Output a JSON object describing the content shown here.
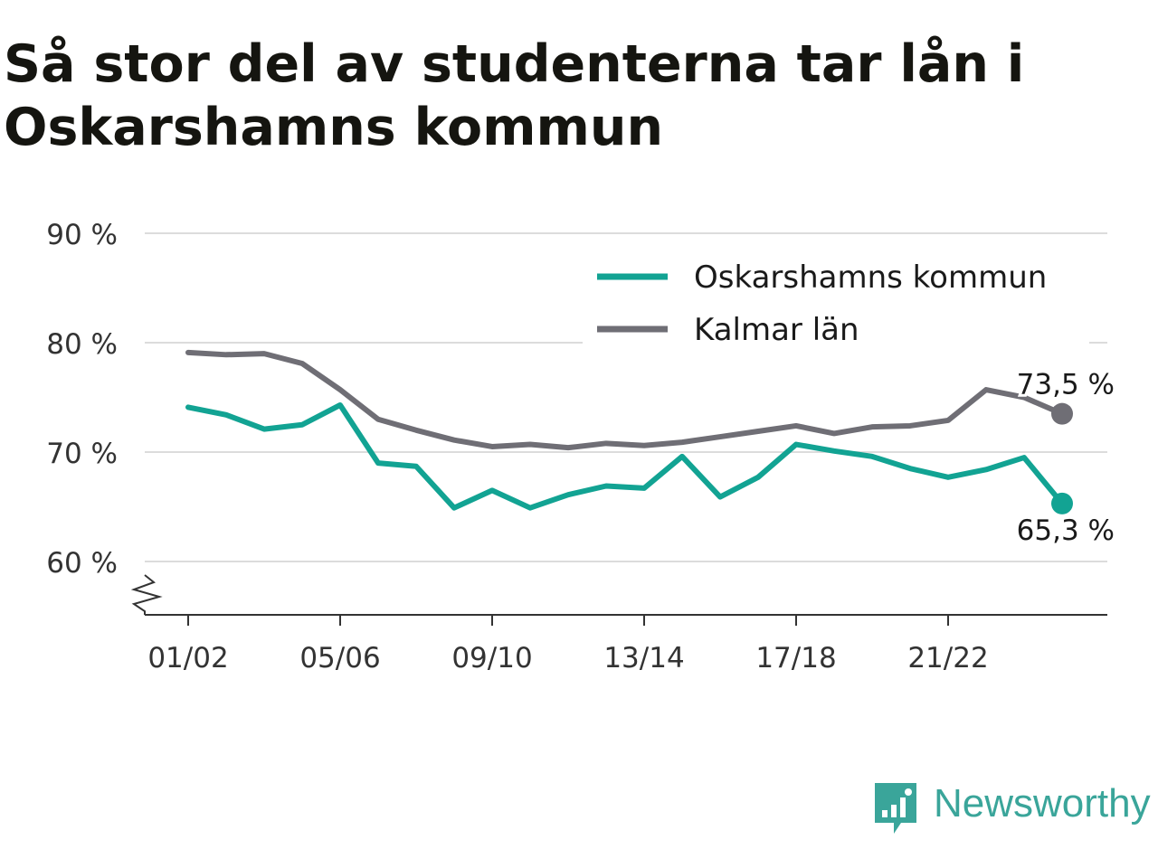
{
  "title": "Så stor del av studenterna tar lån i Oskarshamns kommun",
  "brand": {
    "name": "Newsworthy",
    "color": "#3aa59a",
    "icon": "newsworthy-chart-bubble-icon"
  },
  "chart_data": {
    "type": "line",
    "title": "Så stor del av studenterna tar lån i Oskarshamns kommun",
    "xlabel": "",
    "ylabel": "",
    "categories": [
      "01/02",
      "02/03",
      "03/04",
      "04/05",
      "05/06",
      "06/07",
      "07/08",
      "08/09",
      "09/10",
      "10/11",
      "11/12",
      "12/13",
      "13/14",
      "14/15",
      "15/16",
      "16/17",
      "17/18",
      "18/19",
      "19/20",
      "20/21",
      "21/22",
      "22/23",
      "23/24",
      "24/25"
    ],
    "x_tick_labels": [
      "01/02",
      "05/06",
      "09/10",
      "13/14",
      "17/18",
      "21/22"
    ],
    "ylim": [
      55,
      90
    ],
    "y_ticks": [
      60,
      70,
      80,
      90
    ],
    "y_tick_labels": [
      "60 %",
      "70 %",
      "80 %",
      "90 %"
    ],
    "y_axis_break": true,
    "grid": true,
    "legend_position": "top-right",
    "series": [
      {
        "name": "Oskarshamns kommun",
        "color": "#12a393",
        "values": [
          74.1,
          73.4,
          72.1,
          72.5,
          74.3,
          69.0,
          68.7,
          64.9,
          66.5,
          64.9,
          66.1,
          66.9,
          66.7,
          69.6,
          65.9,
          67.7,
          70.7,
          70.1,
          69.6,
          68.5,
          67.7,
          68.4,
          69.5,
          65.3
        ],
        "end_label": "65,3 %"
      },
      {
        "name": "Kalmar län",
        "color": "#6f6e75",
        "values": [
          79.1,
          78.9,
          79.0,
          78.1,
          75.7,
          73.0,
          72.0,
          71.1,
          70.5,
          70.7,
          70.4,
          70.8,
          70.6,
          70.9,
          71.4,
          71.9,
          72.4,
          71.7,
          72.3,
          72.4,
          72.9,
          75.7,
          75.0,
          73.5
        ],
        "end_label": "73,5 %"
      }
    ]
  }
}
